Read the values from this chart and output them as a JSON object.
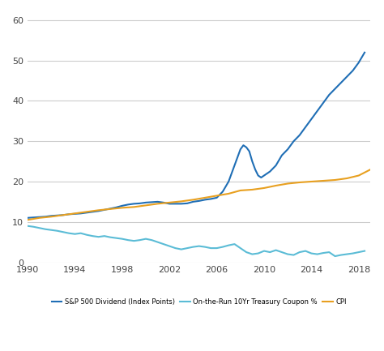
{
  "title": "",
  "xlim": [
    1990,
    2019
  ],
  "ylim": [
    0,
    62
  ],
  "yticks": [
    0,
    10,
    20,
    30,
    40,
    50,
    60
  ],
  "xticks": [
    1990,
    1994,
    1998,
    2002,
    2006,
    2010,
    2014,
    2018
  ],
  "background_color": "#ffffff",
  "grid_color": "#cccccc",
  "legend_labels": [
    "S&P 500 Dividend (Index Points)",
    "On-the-Run 10Yr Treasury Coupon %",
    "CPI"
  ],
  "legend_colors": [
    "#1f6eb5",
    "#5bbcd6",
    "#e8a020"
  ],
  "sp500_x": [
    1990,
    1990.5,
    1991,
    1991.5,
    1992,
    1992.5,
    1993,
    1993.5,
    1994,
    1994.5,
    1995,
    1995.5,
    1996,
    1996.5,
    1997,
    1997.5,
    1998,
    1998.5,
    1999,
    1999.5,
    2000,
    2000.5,
    2001,
    2001.5,
    2002,
    2002.5,
    2003,
    2003.5,
    2004,
    2004.5,
    2005,
    2005.5,
    2006,
    2006.5,
    2007,
    2007.5,
    2008,
    2008.25,
    2008.5,
    2008.75,
    2009,
    2009.25,
    2009.5,
    2009.75,
    2010,
    2010.5,
    2011,
    2011.5,
    2012,
    2012.5,
    2013,
    2013.5,
    2014,
    2014.5,
    2015,
    2015.5,
    2016,
    2016.5,
    2017,
    2017.5,
    2018,
    2018.5
  ],
  "sp500_y": [
    11.0,
    11.1,
    11.2,
    11.3,
    11.5,
    11.6,
    11.7,
    11.9,
    12.0,
    12.1,
    12.3,
    12.5,
    12.7,
    13.0,
    13.3,
    13.6,
    14.0,
    14.3,
    14.5,
    14.6,
    14.8,
    14.9,
    15.0,
    14.8,
    14.5,
    14.5,
    14.5,
    14.6,
    15.0,
    15.2,
    15.5,
    15.7,
    16.0,
    17.5,
    20.0,
    24.0,
    28.0,
    29.0,
    28.5,
    27.5,
    25.0,
    23.0,
    21.5,
    21.0,
    21.5,
    22.5,
    24.0,
    26.5,
    28.0,
    30.0,
    31.5,
    33.5,
    35.5,
    37.5,
    39.5,
    41.5,
    43.0,
    44.5,
    46.0,
    47.5,
    49.5,
    52.0
  ],
  "treasury_x": [
    1990,
    1990.5,
    1991,
    1991.5,
    1992,
    1992.5,
    1993,
    1993.5,
    1994,
    1994.5,
    1995,
    1995.5,
    1996,
    1996.5,
    1997,
    1997.5,
    1998,
    1998.5,
    1999,
    1999.5,
    2000,
    2000.5,
    2001,
    2001.5,
    2002,
    2002.5,
    2003,
    2003.5,
    2004,
    2004.5,
    2005,
    2005.5,
    2006,
    2006.5,
    2007,
    2007.5,
    2008,
    2008.5,
    2009,
    2009.5,
    2010,
    2010.5,
    2011,
    2011.5,
    2012,
    2012.5,
    2013,
    2013.5,
    2014,
    2014.5,
    2015,
    2015.5,
    2016,
    2016.5,
    2017,
    2017.5,
    2018,
    2018.5
  ],
  "treasury_y": [
    9.0,
    8.8,
    8.5,
    8.2,
    8.0,
    7.8,
    7.5,
    7.2,
    7.0,
    7.2,
    6.8,
    6.5,
    6.3,
    6.5,
    6.2,
    6.0,
    5.8,
    5.5,
    5.3,
    5.5,
    5.8,
    5.5,
    5.0,
    4.5,
    4.0,
    3.5,
    3.2,
    3.5,
    3.8,
    4.0,
    3.8,
    3.5,
    3.5,
    3.8,
    4.2,
    4.5,
    3.5,
    2.5,
    2.0,
    2.2,
    2.8,
    2.5,
    3.0,
    2.5,
    2.0,
    1.8,
    2.5,
    2.8,
    2.2,
    2.0,
    2.3,
    2.5,
    1.5,
    1.8,
    2.0,
    2.2,
    2.5,
    2.8
  ],
  "cpi_x": [
    1990,
    1991,
    1992,
    1993,
    1994,
    1995,
    1996,
    1997,
    1998,
    1999,
    2000,
    2001,
    2002,
    2003,
    2004,
    2005,
    2006,
    2007,
    2008,
    2009,
    2010,
    2011,
    2012,
    2013,
    2014,
    2015,
    2016,
    2017,
    2018,
    2019
  ],
  "cpi_y": [
    10.5,
    11.0,
    11.3,
    11.7,
    12.1,
    12.5,
    12.9,
    13.2,
    13.5,
    13.7,
    14.1,
    14.5,
    14.8,
    15.1,
    15.5,
    16.0,
    16.5,
    17.0,
    17.8,
    18.0,
    18.4,
    19.0,
    19.5,
    19.8,
    20.0,
    20.2,
    20.4,
    20.8,
    21.5,
    23.0
  ]
}
